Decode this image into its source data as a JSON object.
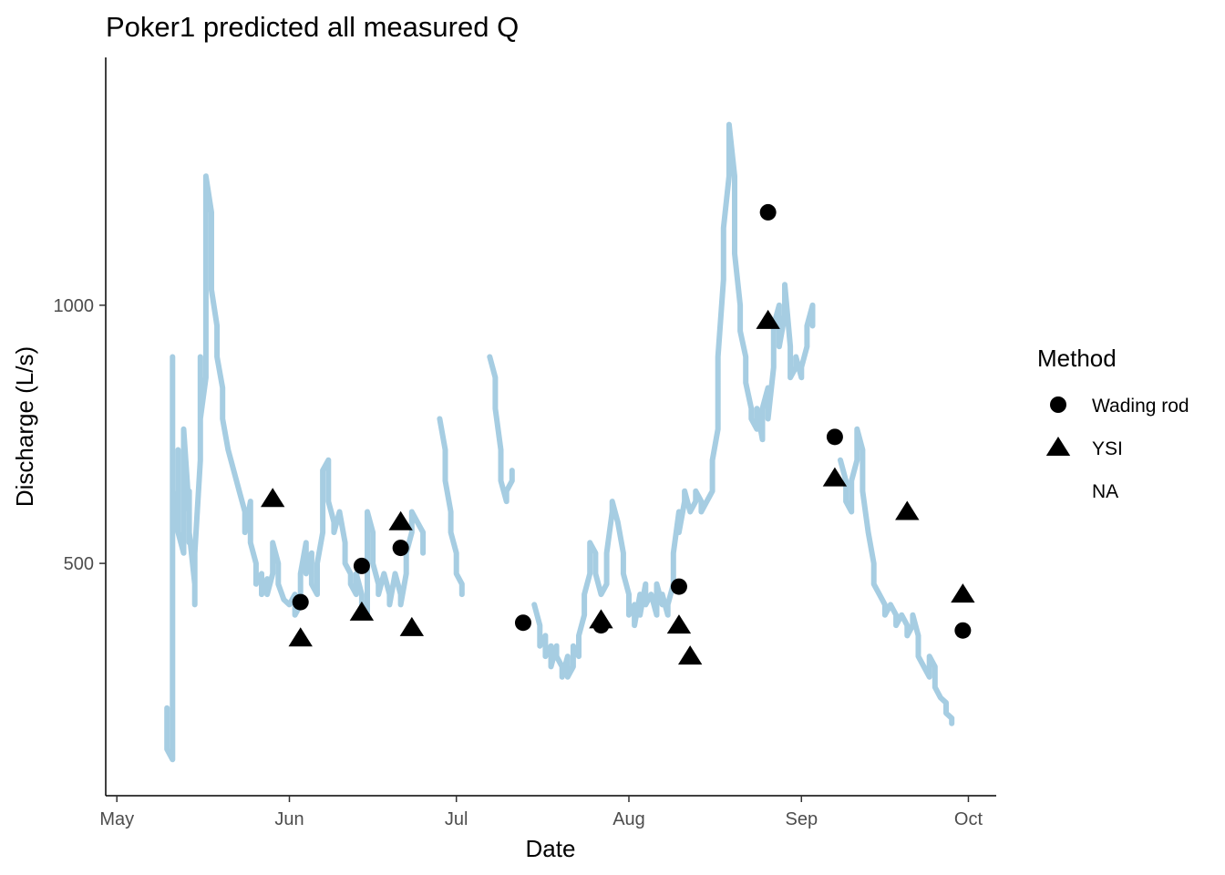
{
  "chart_data": {
    "type": "line",
    "title": "Poker1 predicted all measured Q",
    "xlabel": "Date",
    "ylabel": "Discharge (L/s)",
    "x_ticks": [
      {
        "label": "May",
        "date": "05-01"
      },
      {
        "label": "Jun",
        "date": "06-01"
      },
      {
        "label": "Jul",
        "date": "07-01"
      },
      {
        "label": "Aug",
        "date": "08-01"
      },
      {
        "label": "Sep",
        "date": "09-01"
      },
      {
        "label": "Oct",
        "date": "10-01"
      }
    ],
    "y_ticks": [
      500,
      1000
    ],
    "xlim": [
      "04-29",
      "10-06"
    ],
    "ylim": [
      50,
      1480
    ],
    "grid": false,
    "legend": {
      "title": "Method",
      "position": "right",
      "entries": [
        {
          "label": "Wading rod",
          "shape": "circle"
        },
        {
          "label": "YSI",
          "shape": "triangle"
        },
        {
          "label": "NA",
          "shape": "none"
        }
      ]
    },
    "line_color": "#a6cde2",
    "point_color": "#000000",
    "predicted_series": [
      {
        "segment": 1,
        "points": [
          [
            "05-10",
            220
          ],
          [
            "05-10",
            140
          ],
          [
            "05-11",
            120
          ],
          [
            "05-11",
            600
          ],
          [
            "05-11",
            720
          ],
          [
            "05-11",
            900
          ],
          [
            "05-11",
            640
          ],
          [
            "05-12",
            560
          ],
          [
            "05-12",
            720
          ],
          [
            "05-12",
            560
          ],
          [
            "05-13",
            520
          ],
          [
            "05-13",
            700
          ],
          [
            "05-13",
            520
          ],
          [
            "05-13",
            760
          ],
          [
            "05-14",
            600
          ],
          [
            "05-14",
            540
          ],
          [
            "05-14",
            640
          ],
          [
            "05-14",
            560
          ],
          [
            "05-15",
            460
          ],
          [
            "05-15",
            420
          ],
          [
            "05-15",
            520
          ],
          [
            "05-16",
            700
          ],
          [
            "05-16",
            800
          ],
          [
            "05-16",
            900
          ],
          [
            "05-16",
            780
          ],
          [
            "05-17",
            860
          ],
          [
            "05-17",
            1050
          ],
          [
            "05-17",
            1150
          ],
          [
            "05-17",
            1250
          ],
          [
            "05-18",
            1180
          ],
          [
            "05-18",
            1080
          ],
          [
            "05-18",
            1150
          ],
          [
            "05-18",
            1030
          ],
          [
            "05-19",
            960
          ],
          [
            "05-19",
            900
          ],
          [
            "05-20",
            840
          ],
          [
            "05-20",
            780
          ],
          [
            "05-21",
            720
          ],
          [
            "05-22",
            680
          ],
          [
            "05-23",
            640
          ],
          [
            "05-24",
            600
          ],
          [
            "05-24",
            560
          ],
          [
            "05-25",
            620
          ],
          [
            "05-25",
            540
          ],
          [
            "05-26",
            500
          ],
          [
            "05-26",
            460
          ],
          [
            "05-27",
            480
          ],
          [
            "05-27",
            440
          ],
          [
            "05-28",
            470
          ],
          [
            "05-28",
            440
          ],
          [
            "05-29",
            480
          ],
          [
            "05-29",
            540
          ],
          [
            "05-30",
            500
          ],
          [
            "05-30",
            460
          ],
          [
            "05-31",
            430
          ],
          [
            "06-01",
            420
          ],
          [
            "06-02",
            440
          ],
          [
            "06-02",
            400
          ],
          [
            "06-03",
            420
          ],
          [
            "06-03",
            480
          ],
          [
            "06-04",
            540
          ],
          [
            "06-04",
            480
          ],
          [
            "06-05",
            520
          ],
          [
            "06-05",
            460
          ],
          [
            "06-06",
            440
          ],
          [
            "06-06",
            500
          ],
          [
            "06-07",
            560
          ],
          [
            "06-07",
            680
          ],
          [
            "06-08",
            700
          ],
          [
            "06-08",
            620
          ],
          [
            "06-09",
            580
          ],
          [
            "06-09",
            560
          ],
          [
            "06-10",
            600
          ],
          [
            "06-11",
            540
          ],
          [
            "06-11",
            500
          ],
          [
            "06-12",
            480
          ],
          [
            "06-12",
            460
          ],
          [
            "06-13",
            440
          ],
          [
            "06-13",
            480
          ],
          [
            "06-14",
            440
          ],
          [
            "06-14",
            420
          ],
          [
            "06-15",
            400
          ],
          [
            "06-15",
            480
          ],
          [
            "06-15",
            600
          ],
          [
            "06-16",
            560
          ],
          [
            "06-16",
            500
          ],
          [
            "06-17",
            460
          ],
          [
            "06-17",
            440
          ],
          [
            "06-18",
            480
          ],
          [
            "06-19",
            440
          ],
          [
            "06-19",
            420
          ],
          [
            "06-20",
            480
          ],
          [
            "06-21",
            440
          ],
          [
            "06-21",
            420
          ],
          [
            "06-22",
            480
          ],
          [
            "06-22",
            520
          ],
          [
            "06-23",
            560
          ],
          [
            "06-23",
            600
          ],
          [
            "06-24",
            580
          ],
          [
            "06-25",
            560
          ],
          [
            "06-25",
            520
          ]
        ]
      },
      {
        "segment": 2,
        "points": [
          [
            "06-28",
            780
          ],
          [
            "06-29",
            720
          ],
          [
            "06-29",
            660
          ],
          [
            "06-30",
            600
          ],
          [
            "06-30",
            560
          ],
          [
            "07-01",
            520
          ],
          [
            "07-01",
            480
          ],
          [
            "07-02",
            460
          ],
          [
            "07-02",
            440
          ]
        ]
      },
      {
        "segment": 3,
        "points": [
          [
            "07-07",
            900
          ],
          [
            "07-08",
            860
          ],
          [
            "07-08",
            800
          ],
          [
            "07-09",
            720
          ],
          [
            "07-09",
            660
          ],
          [
            "07-10",
            620
          ],
          [
            "07-10",
            640
          ],
          [
            "07-11",
            660
          ],
          [
            "07-11",
            680
          ],
          [
            "07-11",
            660
          ]
        ]
      },
      {
        "segment": 4,
        "points": [
          [
            "07-15",
            420
          ],
          [
            "07-16",
            380
          ],
          [
            "07-16",
            340
          ],
          [
            "07-17",
            360
          ],
          [
            "07-17",
            320
          ],
          [
            "07-18",
            340
          ],
          [
            "07-18",
            300
          ],
          [
            "07-19",
            340
          ],
          [
            "07-19",
            320
          ],
          [
            "07-20",
            300
          ],
          [
            "07-20",
            280
          ],
          [
            "07-21",
            320
          ],
          [
            "07-21",
            280
          ],
          [
            "07-22",
            300
          ],
          [
            "07-22",
            340
          ],
          [
            "07-23",
            320
          ],
          [
            "07-23",
            360
          ],
          [
            "07-24",
            400
          ],
          [
            "07-24",
            440
          ],
          [
            "07-25",
            480
          ],
          [
            "07-25",
            540
          ],
          [
            "07-26",
            520
          ],
          [
            "07-26",
            480
          ],
          [
            "07-27",
            440
          ],
          [
            "07-28",
            460
          ],
          [
            "07-28",
            520
          ],
          [
            "07-29",
            600
          ],
          [
            "07-29",
            620
          ],
          [
            "07-30",
            580
          ],
          [
            "07-31",
            520
          ],
          [
            "07-31",
            480
          ],
          [
            "08-01",
            440
          ],
          [
            "08-01",
            400
          ],
          [
            "08-02",
            420
          ],
          [
            "08-02",
            380
          ],
          [
            "08-03",
            440
          ],
          [
            "08-03",
            400
          ],
          [
            "08-04",
            460
          ],
          [
            "08-04",
            420
          ],
          [
            "08-05",
            440
          ],
          [
            "08-06",
            400
          ],
          [
            "08-06",
            460
          ],
          [
            "08-07",
            420
          ],
          [
            "08-07",
            440
          ],
          [
            "08-08",
            400
          ],
          [
            "08-08",
            420
          ],
          [
            "08-09",
            460
          ],
          [
            "08-09",
            520
          ],
          [
            "08-10",
            600
          ],
          [
            "08-10",
            560
          ],
          [
            "08-11",
            620
          ],
          [
            "08-11",
            640
          ],
          [
            "08-12",
            600
          ],
          [
            "08-13",
            620
          ],
          [
            "08-13",
            640
          ],
          [
            "08-14",
            620
          ],
          [
            "08-14",
            600
          ],
          [
            "08-15",
            620
          ],
          [
            "08-16",
            640
          ],
          [
            "08-16",
            700
          ],
          [
            "08-17",
            760
          ],
          [
            "08-17",
            900
          ],
          [
            "08-18",
            1050
          ],
          [
            "08-18",
            1150
          ],
          [
            "08-19",
            1250
          ],
          [
            "08-19",
            1350
          ],
          [
            "08-20",
            1250
          ],
          [
            "08-20",
            1100
          ],
          [
            "08-21",
            1000
          ],
          [
            "08-21",
            950
          ],
          [
            "08-22",
            900
          ],
          [
            "08-22",
            850
          ],
          [
            "08-23",
            800
          ],
          [
            "08-23",
            780
          ],
          [
            "08-24",
            760
          ],
          [
            "08-24",
            800
          ],
          [
            "08-25",
            740
          ],
          [
            "08-25",
            800
          ],
          [
            "08-26",
            840
          ],
          [
            "08-26",
            780
          ],
          [
            "08-27",
            880
          ],
          [
            "08-27",
            960
          ],
          [
            "08-28",
            1000
          ],
          [
            "08-28",
            920
          ],
          [
            "08-29",
            980
          ],
          [
            "08-29",
            1040
          ],
          [
            "08-30",
            920
          ],
          [
            "08-30",
            860
          ],
          [
            "08-31",
            880
          ],
          [
            "08-31",
            900
          ],
          [
            "09-01",
            860
          ],
          [
            "09-01",
            880
          ],
          [
            "09-02",
            920
          ],
          [
            "09-02",
            960
          ],
          [
            "09-03",
            1000
          ],
          [
            "09-03",
            960
          ]
        ]
      },
      {
        "segment": 5,
        "points": [
          [
            "09-08",
            700
          ],
          [
            "09-09",
            660
          ],
          [
            "09-09",
            620
          ],
          [
            "09-10",
            600
          ],
          [
            "09-10",
            660
          ],
          [
            "09-11",
            700
          ],
          [
            "09-11",
            760
          ],
          [
            "09-12",
            720
          ],
          [
            "09-12",
            640
          ],
          [
            "09-13",
            560
          ],
          [
            "09-14",
            500
          ],
          [
            "09-14",
            460
          ],
          [
            "09-15",
            440
          ],
          [
            "09-16",
            420
          ],
          [
            "09-16",
            400
          ],
          [
            "09-17",
            420
          ],
          [
            "09-18",
            400
          ],
          [
            "09-18",
            380
          ],
          [
            "09-19",
            400
          ],
          [
            "09-20",
            380
          ],
          [
            "09-20",
            360
          ],
          [
            "09-21",
            380
          ],
          [
            "09-21",
            400
          ],
          [
            "09-22",
            360
          ],
          [
            "09-22",
            320
          ],
          [
            "09-23",
            300
          ],
          [
            "09-24",
            280
          ],
          [
            "09-24",
            320
          ],
          [
            "09-25",
            300
          ],
          [
            "09-25",
            260
          ],
          [
            "09-26",
            240
          ],
          [
            "09-27",
            230
          ],
          [
            "09-27",
            210
          ],
          [
            "09-28",
            200
          ],
          [
            "09-28",
            190
          ]
        ]
      }
    ],
    "measured_points": [
      {
        "date": "05-29",
        "value": 625,
        "method": "YSI"
      },
      {
        "date": "06-03",
        "value": 425,
        "method": "Wading rod"
      },
      {
        "date": "06-03",
        "value": 355,
        "method": "YSI"
      },
      {
        "date": "06-14",
        "value": 495,
        "method": "Wading rod"
      },
      {
        "date": "06-14",
        "value": 405,
        "method": "YSI"
      },
      {
        "date": "06-21",
        "value": 530,
        "method": "Wading rod"
      },
      {
        "date": "06-21",
        "value": 580,
        "method": "YSI"
      },
      {
        "date": "06-23",
        "value": 375,
        "method": "YSI"
      },
      {
        "date": "07-13",
        "value": 385,
        "method": "Wading rod"
      },
      {
        "date": "07-27",
        "value": 380,
        "method": "Wading rod"
      },
      {
        "date": "07-27",
        "value": 390,
        "method": "YSI"
      },
      {
        "date": "08-10",
        "value": 455,
        "method": "Wading rod"
      },
      {
        "date": "08-10",
        "value": 380,
        "method": "YSI"
      },
      {
        "date": "08-12",
        "value": 320,
        "method": "YSI"
      },
      {
        "date": "08-26",
        "value": 1180,
        "method": "Wading rod"
      },
      {
        "date": "08-26",
        "value": 970,
        "method": "YSI"
      },
      {
        "date": "09-07",
        "value": 745,
        "method": "Wading rod"
      },
      {
        "date": "09-07",
        "value": 665,
        "method": "YSI"
      },
      {
        "date": "09-20",
        "value": 600,
        "method": "YSI"
      },
      {
        "date": "09-30",
        "value": 370,
        "method": "Wading rod"
      },
      {
        "date": "09-30",
        "value": 440,
        "method": "YSI"
      }
    ]
  }
}
